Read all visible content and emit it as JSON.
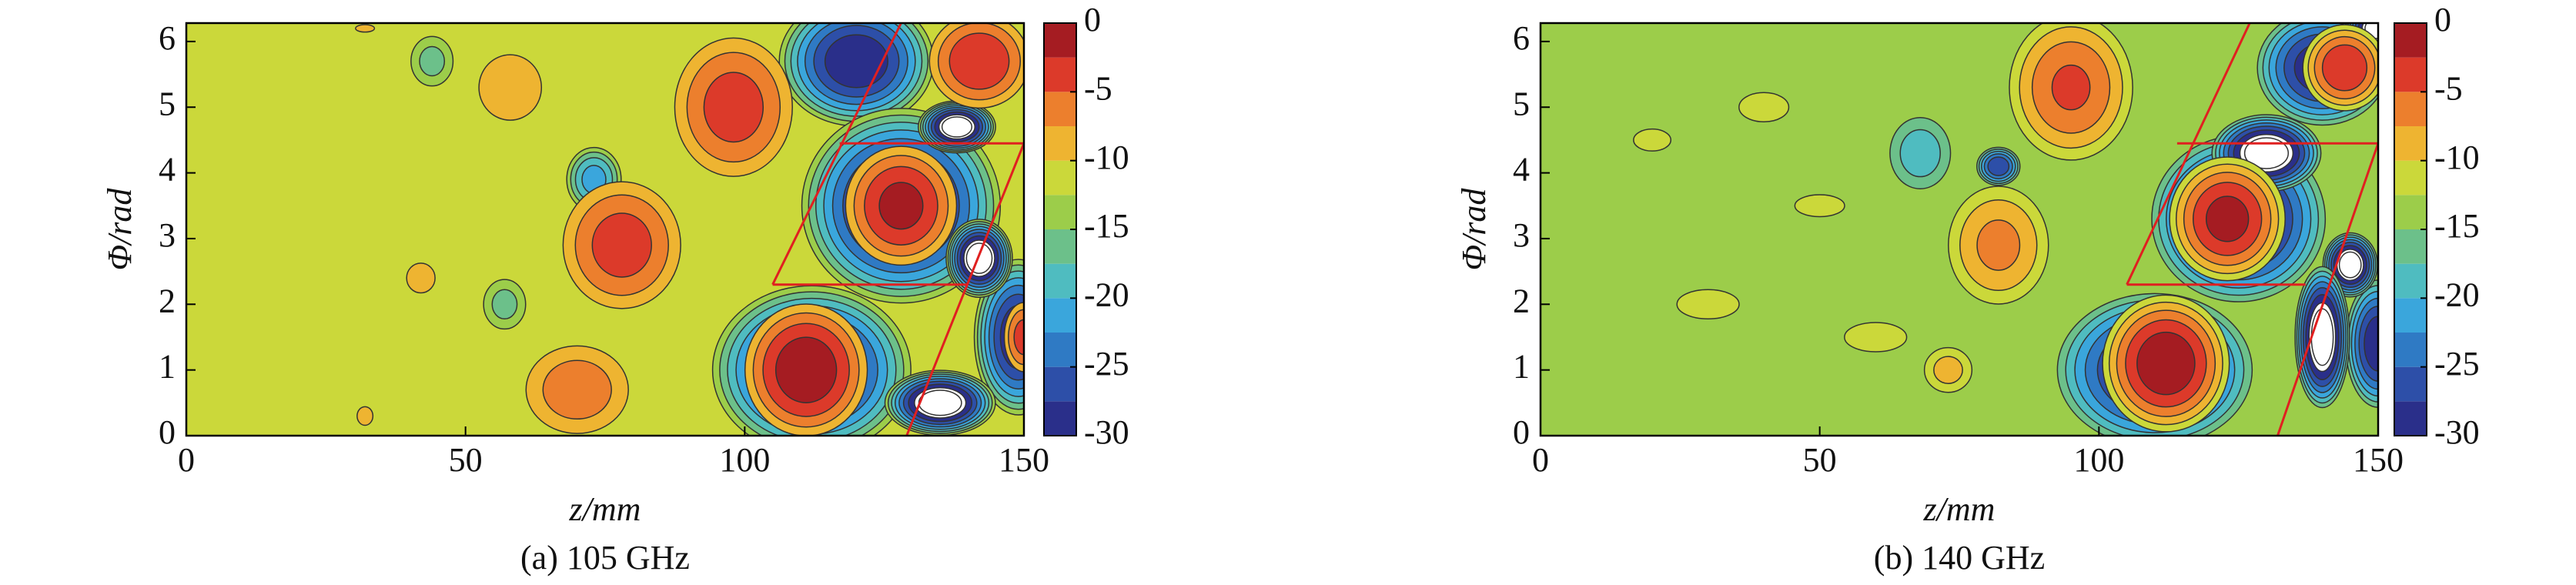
{
  "chart_data": [
    {
      "type": "contour",
      "caption": "(a) 105 GHz",
      "xlabel": "z/mm",
      "ylabel": "Φ/rad",
      "xlim": [
        0,
        150
      ],
      "ylim": [
        0,
        6.28
      ],
      "xticks": [
        0,
        50,
        100,
        150
      ],
      "yticks": [
        0,
        1,
        2,
        3,
        4,
        5,
        6
      ],
      "clim": [
        -30,
        0
      ],
      "cticks": [
        0,
        -5,
        -10,
        -15,
        -20,
        -25,
        -30
      ],
      "levels": [
        -30,
        -27.5,
        -25,
        -22.5,
        -20,
        -17.5,
        -15,
        -12.5,
        -10,
        -7.5,
        -5,
        -2.5,
        0
      ],
      "colormap": [
        "#2a2f8a",
        "#2d4fa8",
        "#2f7ac4",
        "#3aa6dc",
        "#4fbcc0",
        "#6cc08a",
        "#9ccd4a",
        "#cbd83a",
        "#eeb431",
        "#ec7f2d",
        "#dc3a2a",
        "#a51c22"
      ],
      "background": -12,
      "peaks": [
        {
          "z": 120,
          "phi": 5.7,
          "value": -29,
          "rz": 14,
          "rphi": 1.0
        },
        {
          "z": 128,
          "phi": 3.5,
          "value": -30,
          "rz": 18,
          "rphi": 1.5
        },
        {
          "z": 112,
          "phi": 1.0,
          "value": -29,
          "rz": 18,
          "rphi": 1.3
        },
        {
          "z": 149,
          "phi": 1.5,
          "value": -29,
          "rz": 8,
          "rphi": 1.2
        },
        {
          "z": 73,
          "phi": 3.9,
          "value": -21,
          "rz": 5,
          "rphi": 0.5
        },
        {
          "z": 44,
          "phi": 5.7,
          "value": -16,
          "rz": 4,
          "rphi": 0.4
        },
        {
          "z": 57,
          "phi": 2.0,
          "value": -16,
          "rz": 4,
          "rphi": 0.4
        },
        {
          "z": 138,
          "phi": 4.7,
          "value": -33,
          "rz": 7,
          "rphi": 0.4
        },
        {
          "z": 142,
          "phi": 2.7,
          "value": -33,
          "rz": 6,
          "rphi": 0.6
        },
        {
          "z": 135,
          "phi": 0.5,
          "value": -33,
          "rz": 10,
          "rphi": 0.5
        },
        {
          "z": 58,
          "phi": 5.3,
          "value": -9,
          "rz": 9,
          "rphi": 0.8
        },
        {
          "z": 42,
          "phi": 2.4,
          "value": -10,
          "rz": 9,
          "rphi": 0.8
        },
        {
          "z": 32,
          "phi": 6.2,
          "value": -10,
          "rz": 6,
          "rphi": 0.2
        },
        {
          "z": 32,
          "phi": 0.3,
          "value": -10,
          "rz": 5,
          "rphi": 0.5
        },
        {
          "z": 70,
          "phi": 0.7,
          "value": -6,
          "rz": 11,
          "rphi": 0.8
        },
        {
          "z": 98,
          "phi": 5.0,
          "value": -4,
          "rz": 12,
          "rphi": 1.2
        },
        {
          "z": 78,
          "phi": 2.9,
          "value": -4,
          "rz": 12,
          "rphi": 1.1
        },
        {
          "z": 142,
          "phi": 5.7,
          "value": -3,
          "rz": 10,
          "rphi": 0.8
        },
        {
          "z": 128,
          "phi": 3.5,
          "value": -2,
          "rz": 11,
          "rphi": 1.0
        },
        {
          "z": 111,
          "phi": 1.0,
          "value": -1,
          "rz": 12,
          "rphi": 1.1
        },
        {
          "z": 150,
          "phi": 1.5,
          "value": -4,
          "rz": 4,
          "rphi": 0.6
        }
      ],
      "line_color": "#e02020",
      "lines": [
        [
          [
            105,
            2.3
          ],
          [
            128,
            6.28
          ]
        ],
        [
          [
            105,
            2.3
          ],
          [
            140,
            2.3
          ]
        ],
        [
          [
            117,
            4.45
          ],
          [
            150,
            4.45
          ]
        ],
        [
          [
            129,
            0
          ],
          [
            150,
            4.45
          ]
        ]
      ]
    },
    {
      "type": "contour",
      "caption": "(b) 140 GHz",
      "xlabel": "z/mm",
      "ylabel": "Φ/rad",
      "xlim": [
        0,
        150
      ],
      "ylim": [
        0,
        6.28
      ],
      "xticks": [
        0,
        50,
        100,
        150
      ],
      "yticks": [
        0,
        1,
        2,
        3,
        4,
        5,
        6
      ],
      "clim": [
        -30,
        0
      ],
      "cticks": [
        0,
        -5,
        -10,
        -15,
        -20,
        -25,
        -30
      ],
      "levels": [
        -30,
        -27.5,
        -25,
        -22.5,
        -20,
        -17.5,
        -15,
        -12.5,
        -10,
        -7.5,
        -5,
        -2.5,
        0
      ],
      "colormap": [
        "#2a2f8a",
        "#2d4fa8",
        "#2f7ac4",
        "#3aa6dc",
        "#4fbcc0",
        "#6cc08a",
        "#9ccd4a",
        "#cbd83a",
        "#eeb431",
        "#ec7f2d",
        "#dc3a2a",
        "#a51c22"
      ],
      "background": -14,
      "peaks": [
        {
          "z": 140,
          "phi": 5.6,
          "value": -29,
          "rz": 12,
          "rphi": 0.9
        },
        {
          "z": 125,
          "phi": 3.3,
          "value": -30,
          "rz": 16,
          "rphi": 1.3
        },
        {
          "z": 110,
          "phi": 1.0,
          "value": -29,
          "rz": 18,
          "rphi": 1.2
        },
        {
          "z": 150,
          "phi": 1.4,
          "value": -29,
          "rz": 6,
          "rphi": 1.0
        },
        {
          "z": 82,
          "phi": 4.1,
          "value": -27,
          "rz": 4,
          "rphi": 0.3
        },
        {
          "z": 68,
          "phi": 4.3,
          "value": -19,
          "rz": 6,
          "rphi": 0.6
        },
        {
          "z": 130,
          "phi": 4.3,
          "value": -33,
          "rz": 10,
          "rphi": 0.6
        },
        {
          "z": 145,
          "phi": 2.6,
          "value": -33,
          "rz": 5,
          "rphi": 0.5
        },
        {
          "z": 140,
          "phi": 1.5,
          "value": -33,
          "rz": 5,
          "rphi": 1.1
        },
        {
          "z": 150,
          "phi": 6.2,
          "value": -33,
          "rz": 6,
          "rphi": 0.4
        },
        {
          "z": 20,
          "phi": 4.5,
          "value": -12,
          "rz": 6,
          "rphi": 0.3
        },
        {
          "z": 40,
          "phi": 5.0,
          "value": -12,
          "rz": 8,
          "rphi": 0.4
        },
        {
          "z": 30,
          "phi": 2.0,
          "value": -12,
          "rz": 10,
          "rphi": 0.4
        },
        {
          "z": 50,
          "phi": 3.5,
          "value": -12,
          "rz": 8,
          "rphi": 0.3
        },
        {
          "z": 60,
          "phi": 1.5,
          "value": -12,
          "rz": 10,
          "rphi": 0.4
        },
        {
          "z": 95,
          "phi": 5.3,
          "value": -5,
          "rz": 12,
          "rphi": 1.2
        },
        {
          "z": 82,
          "phi": 2.9,
          "value": -7,
          "rz": 10,
          "rphi": 1.0
        },
        {
          "z": 73,
          "phi": 1.0,
          "value": -9,
          "rz": 5,
          "rphi": 0.4
        },
        {
          "z": 144,
          "phi": 5.6,
          "value": -3,
          "rz": 8,
          "rphi": 0.7
        },
        {
          "z": 123,
          "phi": 3.3,
          "value": -2,
          "rz": 11,
          "rphi": 1.0
        },
        {
          "z": 112,
          "phi": 1.1,
          "value": -1,
          "rz": 12,
          "rphi": 1.1
        }
      ],
      "line_color": "#e02020",
      "lines": [
        [
          [
            105,
            2.3
          ],
          [
            127,
            6.28
          ]
        ],
        [
          [
            105,
            2.3
          ],
          [
            137,
            2.3
          ]
        ],
        [
          [
            114,
            4.45
          ],
          [
            150,
            4.45
          ]
        ],
        [
          [
            132,
            0
          ],
          [
            150,
            4.45
          ]
        ]
      ]
    }
  ]
}
